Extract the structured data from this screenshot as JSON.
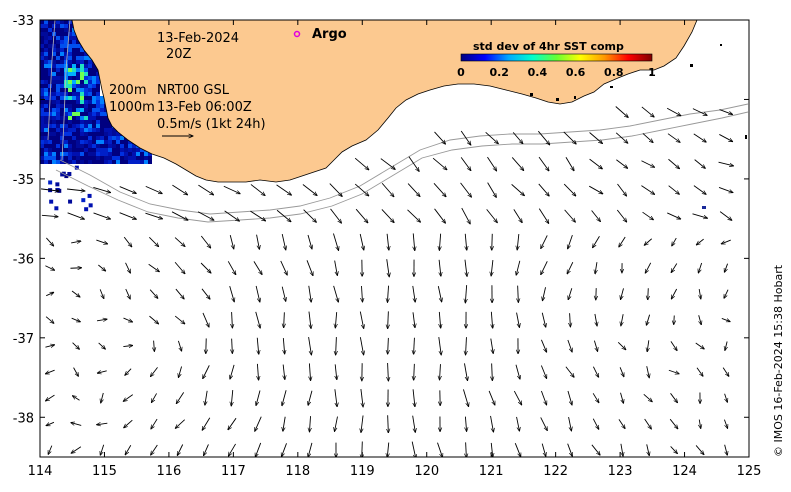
{
  "chart_data": {
    "type": "map",
    "x_ticks": [
      114,
      115,
      116,
      117,
      118,
      119,
      120,
      121,
      122,
      123,
      124,
      125
    ],
    "y_ticks": [
      -33,
      -34,
      -35,
      -36,
      -37,
      -38
    ],
    "xlim": [
      114,
      125
    ],
    "ylim": [
      -38.5,
      -33
    ],
    "annotations": {
      "date": "13-Feb-2024",
      "time": "20Z",
      "contour_200": "200m",
      "contour_1000": "1000m",
      "product": "NRT00 GSL",
      "product_time": "13-Feb 06:00Z",
      "scale_label": "0.5m/s (1kt 24h)",
      "argo_label": "Argo",
      "credit": "© IMOS 16-Feb-2024 15:38 Hobart"
    },
    "colorbar": {
      "title": "std dev of 4hr SST comp",
      "ticks": [
        "0",
        "0.2",
        "0.4",
        "0.6",
        "0.8",
        "1"
      ],
      "colors": [
        "#000080",
        "#0000ff",
        "#00aaff",
        "#00ffcc",
        "#66ff33",
        "#ffff00",
        "#ff9900",
        "#ff0000",
        "#800000"
      ]
    },
    "land_color": "#fcc990"
  }
}
